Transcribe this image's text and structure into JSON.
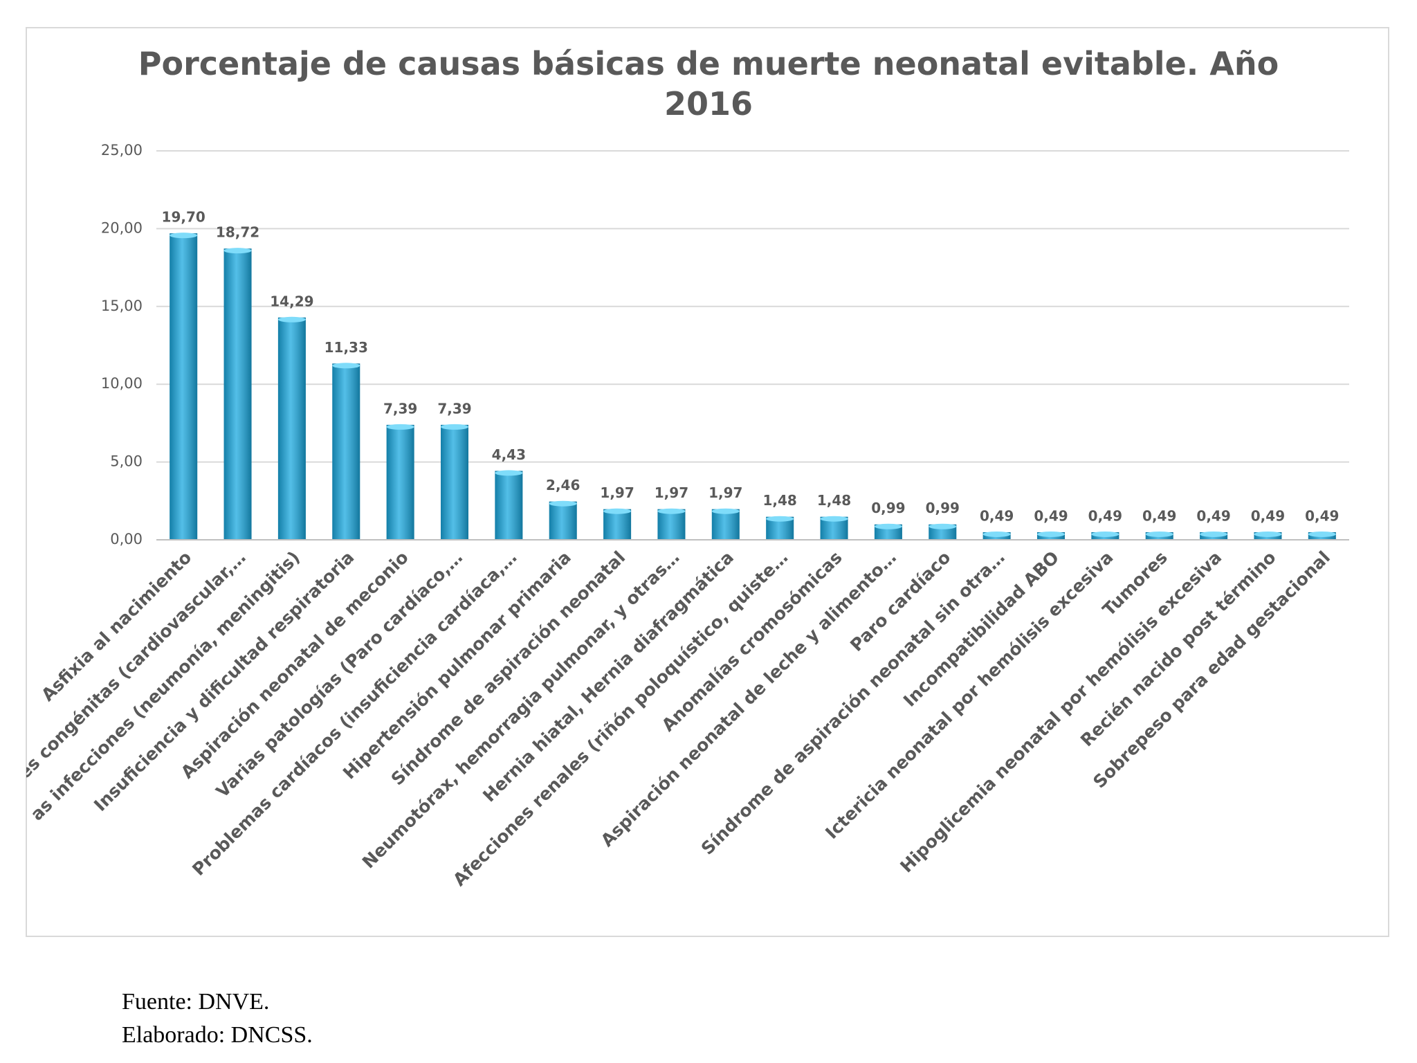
{
  "chart_data": {
    "type": "bar",
    "title": "Porcentaje de causas básicas de muerte neonatal evitable. Año 2016",
    "categories": [
      "Asfixia al nacimiento",
      "es congénitas (cardiovascular,…",
      "as infecciones (neumonía, meningitis)",
      "Insuficiencia y dificultad respiratoria",
      "Aspiración neonatal de meconio",
      "Varias patologías (Paro cardíaco,…",
      "Problemas cardíacos (insuficiencia cardíaca,…",
      "Hipertensión pulmonar primaria",
      "Síndrome de aspiración neonatal",
      "Neumotórax, hemorragia pulmonar, y otras…",
      "Hernia hiatal, Hernia diafragmática",
      "Afecciones renales (riñón poloquístico, quiste…",
      "Anomalías cromosómicas",
      "Aspiración neonatal de leche y alimento…",
      "Paro cardíaco",
      "Síndrome de aspiración neonatal sin otra…",
      "Incompatibilidad ABO",
      "Ictericia neonatal por hemólisis excesiva",
      "Tumores",
      "Hipoglicemia neonatal por hemólisis excesiva",
      "Recién nacido post término",
      "Sobrepeso para edad gestacional"
    ],
    "values": [
      19.7,
      18.72,
      14.29,
      11.33,
      7.39,
      7.39,
      4.43,
      2.46,
      1.97,
      1.97,
      1.97,
      1.48,
      1.48,
      0.99,
      0.99,
      0.49,
      0.49,
      0.49,
      0.49,
      0.49,
      0.49,
      0.49
    ],
    "value_labels": [
      "19,70",
      "18,72",
      "14,29",
      "11,33",
      "7,39",
      "7,39",
      "4,43",
      "2,46",
      "1,97",
      "1,97",
      "1,97",
      "1,48",
      "1,48",
      "0,99",
      "0,99",
      "0,49",
      "0,49",
      "0,49",
      "0,49",
      "0,49",
      "0,49",
      "0,49"
    ],
    "color": "#1aa9e0",
    "ylim": [
      0,
      25
    ],
    "yticks": [
      {
        "value": 0,
        "label": "0,00"
      },
      {
        "value": 5,
        "label": "5,00"
      },
      {
        "value": 10,
        "label": "10,00"
      },
      {
        "value": 15,
        "label": "15,00"
      },
      {
        "value": 20,
        "label": "20,00"
      },
      {
        "value": 25,
        "label": "25,00"
      }
    ],
    "grid": true
  },
  "footer": {
    "source": "Fuente: DNVE.",
    "author": "Elaborado: DNCSS."
  }
}
